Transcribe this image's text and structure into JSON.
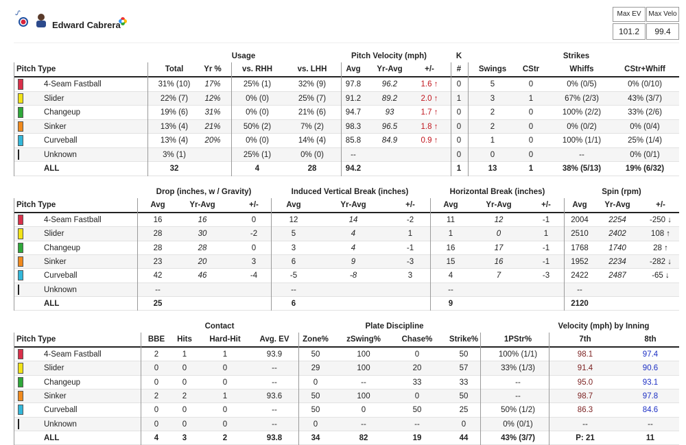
{
  "header": {
    "name": "Edward Cabrera",
    "stats": [
      {
        "label": "Max EV",
        "value": 101.2
      },
      {
        "label": "Max Velo",
        "value": 99.4
      }
    ]
  },
  "tables": [
    {
      "groups": [
        "Usage",
        "Pitch Velocity (mph)",
        "K",
        "Strikes"
      ],
      "columns": [
        "Pitch Type",
        "Total",
        "Yr %",
        "vs. RHH",
        "vs. LHH",
        "Avg",
        "Yr-Avg",
        "+/-",
        "#",
        "Swings",
        "CStr",
        "Whiffs",
        "CStr+Whiff"
      ],
      "rows": [
        [
          "4-Seam Fastball",
          "31% (10)",
          "17%",
          "25% (1)",
          "32% (9)",
          97.8,
          96.2,
          "1.6 ↑",
          0,
          5,
          0,
          "0% (0/5)",
          "0% (0/10)"
        ],
        [
          "Slider",
          "22% (7)",
          "12%",
          "0% (0)",
          "25% (7)",
          91.2,
          89.2,
          "2.0 ↑",
          1,
          3,
          1,
          "67% (2/3)",
          "43% (3/7)"
        ],
        [
          "Changeup",
          "19% (6)",
          "31%",
          "0% (0)",
          "21% (6)",
          94.7,
          93,
          "1.7 ↑",
          0,
          2,
          0,
          "100% (2/2)",
          "33% (2/6)"
        ],
        [
          "Sinker",
          "13% (4)",
          "21%",
          "50% (2)",
          "7% (2)",
          98.3,
          96.5,
          "1.8 ↑",
          0,
          2,
          0,
          "0% (0/2)",
          "0% (0/4)"
        ],
        [
          "Curveball",
          "13% (4)",
          "20%",
          "0% (0)",
          "14% (4)",
          85.8,
          84.9,
          "0.9 ↑",
          0,
          1,
          0,
          "100% (1/1)",
          "25% (1/4)"
        ],
        [
          "Unknown",
          "3% (1)",
          null,
          "25% (1)",
          "0% (0)",
          "--",
          null,
          null,
          0,
          0,
          0,
          "--",
          "0% (0/1)"
        ],
        [
          "ALL",
          32,
          null,
          4,
          28,
          94.2,
          null,
          null,
          1,
          13,
          1,
          "38% (5/13)",
          "19% (6/32)"
        ]
      ]
    },
    {
      "groups": [
        "Drop (inches, w / Gravity)",
        "Induced Vertical Break (inches)",
        "Horizontal Break (inches)",
        "Spin (rpm)"
      ],
      "columns": [
        "Pitch Type",
        "Avg",
        "Yr-Avg",
        "+/-",
        "Avg",
        "Yr-Avg",
        "+/-",
        "Avg",
        "Yr-Avg",
        "+/-",
        "Avg",
        "Yr-Avg",
        "+/-"
      ],
      "rows": [
        [
          "4-Seam Fastball",
          16,
          16,
          0,
          12,
          14,
          -2,
          11,
          12,
          -1,
          2004,
          2254,
          "-250 ↓"
        ],
        [
          "Slider",
          28,
          30,
          -2,
          5,
          4,
          1,
          1,
          0,
          1,
          2510,
          2402,
          "108 ↑"
        ],
        [
          "Changeup",
          28,
          28,
          0,
          3,
          4,
          -1,
          16,
          17,
          -1,
          1768,
          1740,
          "28 ↑"
        ],
        [
          "Sinker",
          23,
          20,
          3,
          6,
          9,
          -3,
          15,
          16,
          -1,
          1952,
          2234,
          "-282 ↓"
        ],
        [
          "Curveball",
          42,
          46,
          -4,
          -5,
          -8,
          3,
          4,
          7,
          -3,
          2422,
          2487,
          "-65 ↓"
        ],
        [
          "Unknown",
          "--",
          null,
          null,
          "--",
          null,
          null,
          "--",
          null,
          null,
          "--",
          null,
          null
        ],
        [
          "ALL",
          25,
          null,
          null,
          6,
          null,
          null,
          9,
          null,
          null,
          2120,
          null,
          null
        ]
      ]
    },
    {
      "groups": [
        "Contact",
        "Plate Discipline",
        "Velocity (mph) by Inning"
      ],
      "columns": [
        "Pitch Type",
        "BBE",
        "Hits",
        "Hard-Hit",
        "Avg. EV",
        "Zone%",
        "zSwing%",
        "Chase%",
        "Strike%",
        "1PStr%",
        "7th",
        "8th"
      ],
      "rows": [
        [
          "4-Seam Fastball",
          2,
          1,
          1,
          93.9,
          50,
          100,
          0,
          50,
          "100% (1/1)",
          98.1,
          97.4
        ],
        [
          "Slider",
          0,
          0,
          0,
          "--",
          29,
          100,
          20,
          57,
          "33% (1/3)",
          91.4,
          90.6
        ],
        [
          "Changeup",
          0,
          0,
          0,
          "--",
          0,
          "--",
          33,
          33,
          "--",
          "95.0",
          93.1
        ],
        [
          "Sinker",
          2,
          2,
          1,
          93.6,
          50,
          100,
          0,
          50,
          "--",
          98.7,
          97.8
        ],
        [
          "Curveball",
          0,
          0,
          0,
          "--",
          50,
          0,
          50,
          25,
          "50% (1/2)",
          86.3,
          84.6
        ],
        [
          "Unknown",
          0,
          0,
          0,
          "--",
          0,
          "--",
          "--",
          0,
          "0% (0/1)",
          "--",
          "--"
        ],
        [
          "ALL",
          4,
          3,
          2,
          93.8,
          34,
          82,
          19,
          44,
          "43% (3/7)",
          "P: 21",
          11
        ]
      ]
    }
  ]
}
